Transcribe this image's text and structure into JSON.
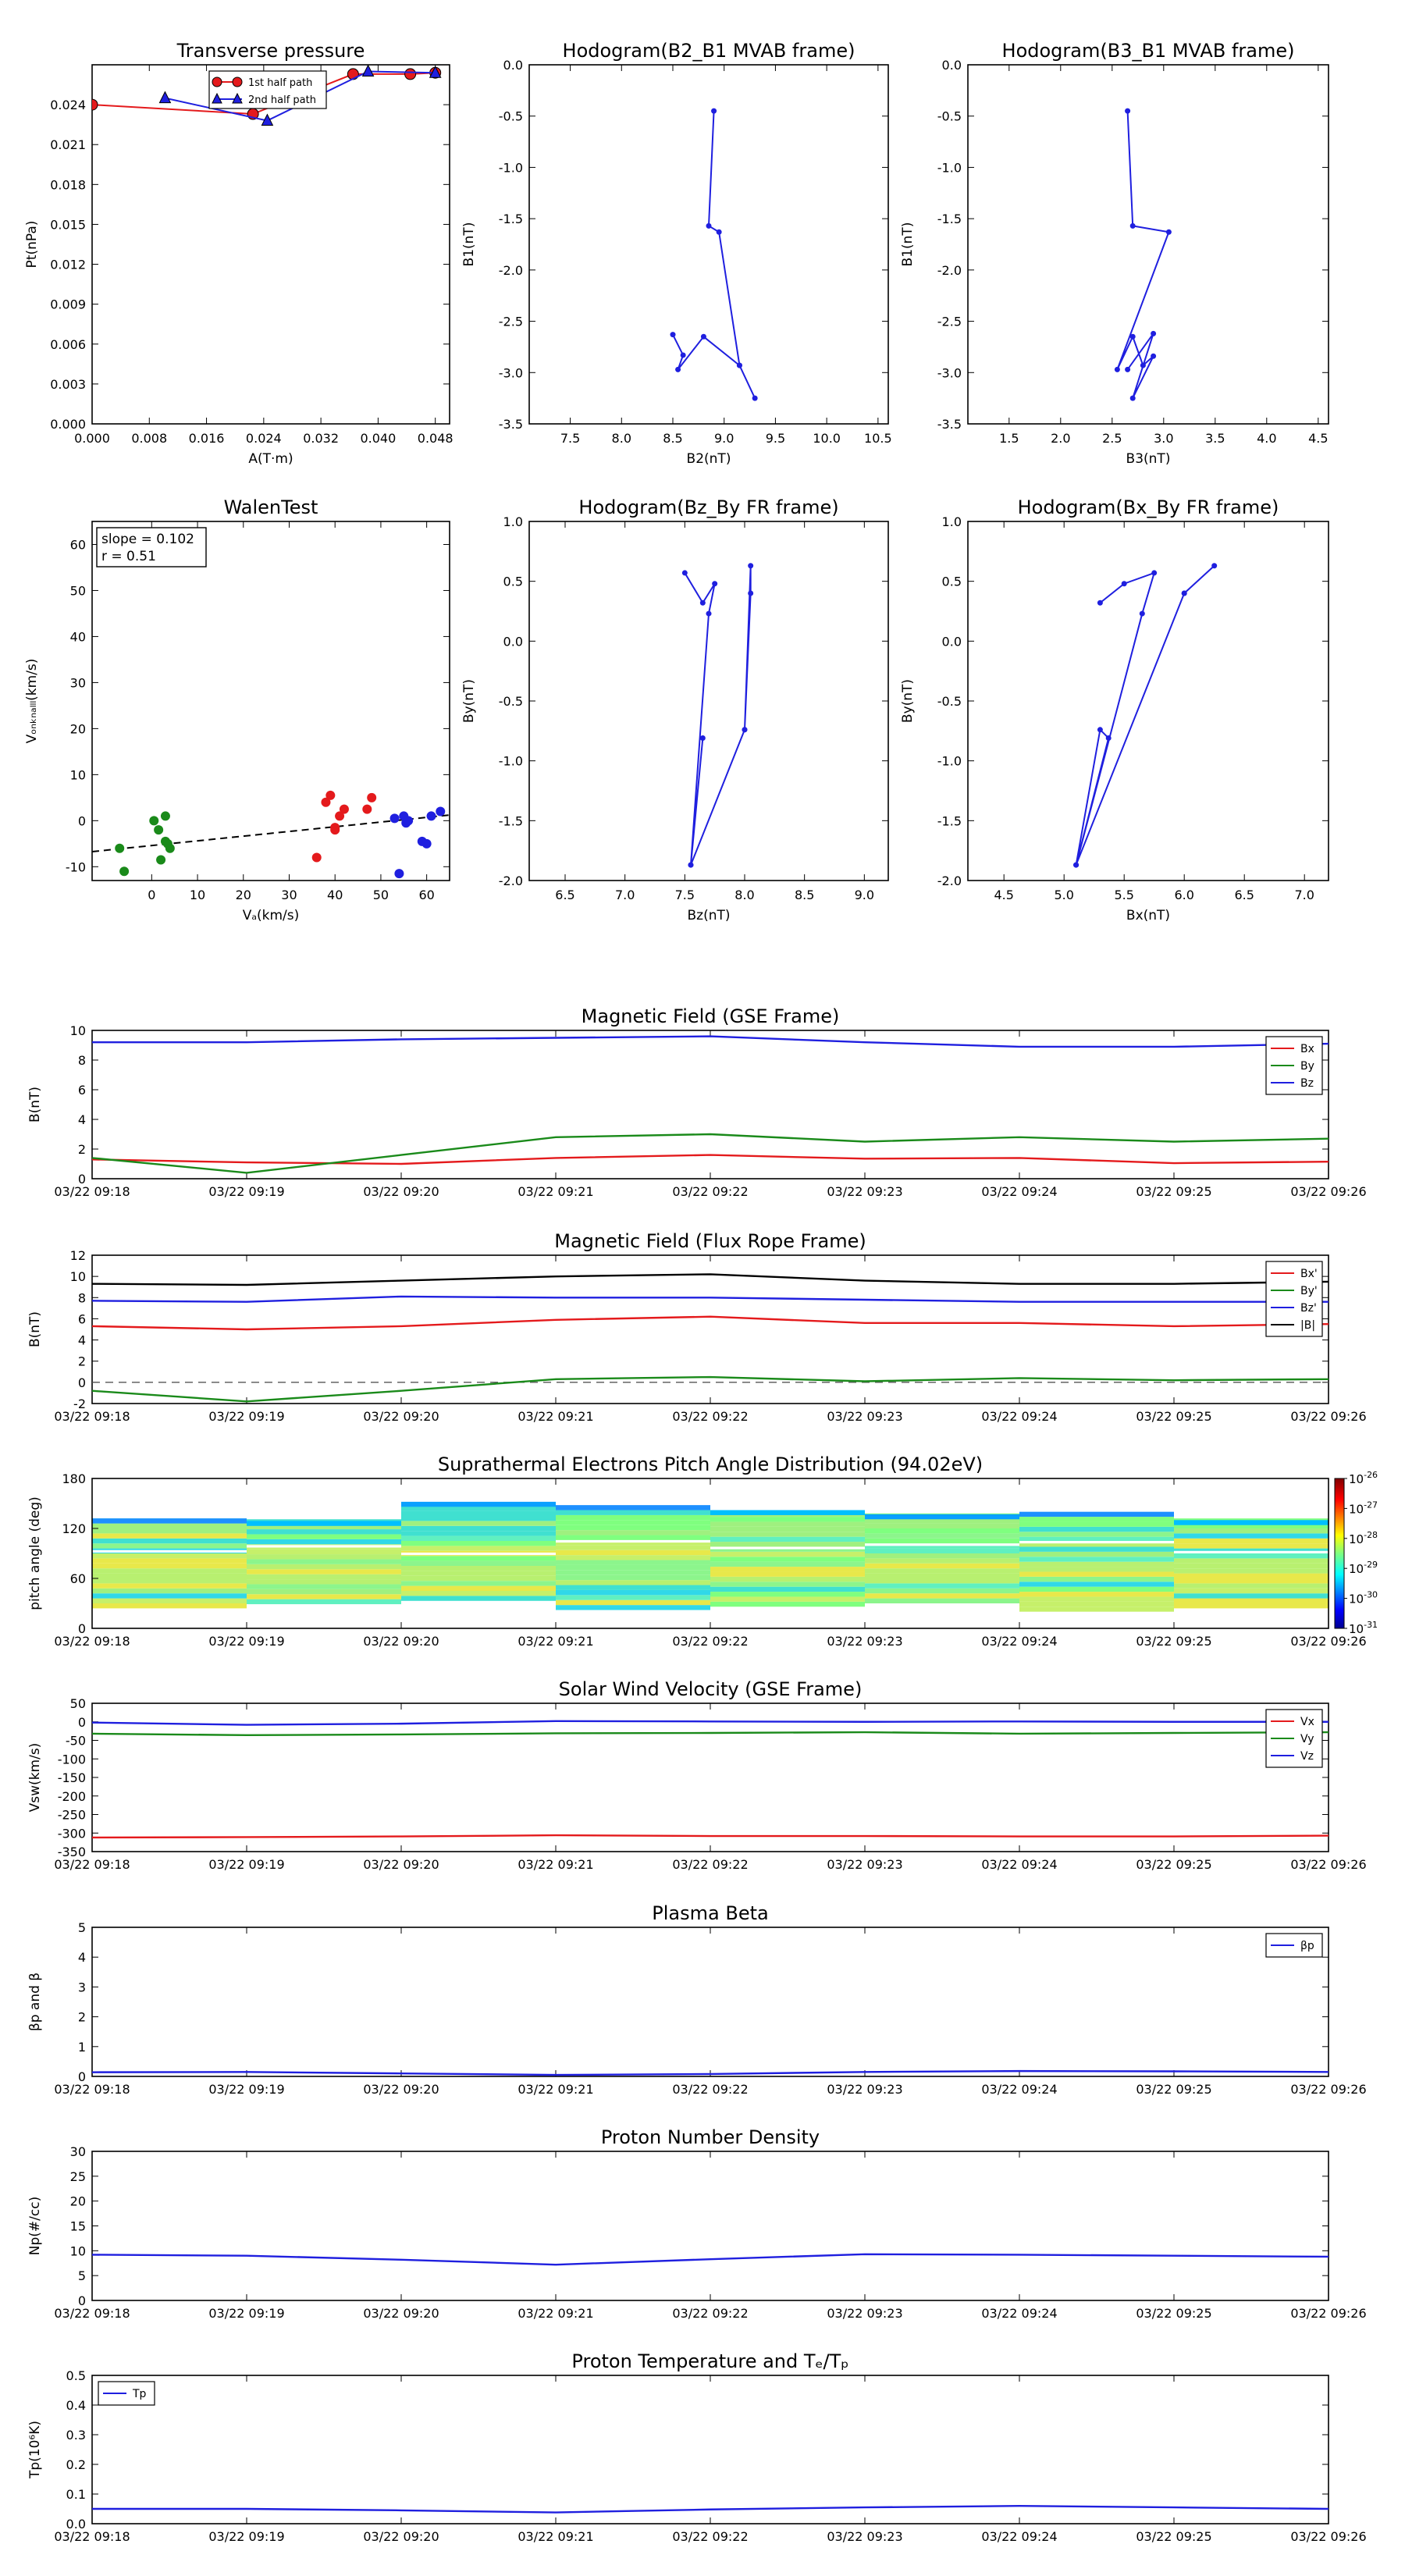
{
  "colors": {
    "red": "#e41a1c",
    "green": "#1a8a1a",
    "blue": "#1f1fdf",
    "black": "#000000"
  },
  "time_ticks": [
    "03/22 09:18",
    "03/22 09:19",
    "03/22 09:20",
    "03/22 09:21",
    "03/22 09:22",
    "03/22 09:23",
    "03/22 09:24",
    "03/22 09:25",
    "03/22 09:26"
  ],
  "pad": {
    "title": "Suprathermal Electrons Pitch Angle Distribution (94.02eV)",
    "ylabel": "pitch angle (deg)",
    "yticks": [
      "0",
      "60",
      "120",
      "180"
    ],
    "colorbar_ticks": [
      "10",
      "10",
      "10",
      "10",
      "10",
      "10"
    ],
    "colorbar_exps": [
      "-26",
      "-27",
      "-28",
      "-29",
      "-30",
      "-31"
    ]
  },
  "chart_data": [
    {
      "id": "transverse-pressure",
      "type": "line",
      "title": "Transverse pressure",
      "xlabel": "A(T·m)",
      "ylabel": "Pt(nPa)",
      "xlim": [
        0,
        0.05
      ],
      "ylim": [
        0,
        0.027
      ],
      "xticks": [
        "0.000",
        "0.008",
        "0.016",
        "0.024",
        "0.032",
        "0.040",
        "0.048"
      ],
      "yticks": [
        "0.000",
        "0.003",
        "0.006",
        "0.009",
        "0.012",
        "0.015",
        "0.018",
        "0.021",
        "0.024"
      ],
      "legend": [
        "1st half path",
        "2nd half path"
      ],
      "legend_position": "top-center",
      "series": [
        {
          "name": "1st half path",
          "color": "red",
          "marker": "circle",
          "x": [
            0.0,
            0.0225,
            0.0365,
            0.0445,
            0.048
          ],
          "y": [
            0.024,
            0.0233,
            0.0263,
            0.0263,
            0.0264
          ]
        },
        {
          "name": "2nd half path",
          "color": "blue",
          "marker": "triangle",
          "x": [
            0.0102,
            0.0245,
            0.0386,
            0.048
          ],
          "y": [
            0.0245,
            0.0228,
            0.0265,
            0.0264
          ]
        }
      ]
    },
    {
      "id": "hodogram-b2-b1",
      "type": "line",
      "title": "Hodogram(B2_B1 MVAB frame)",
      "xlabel": "B2(nT)",
      "ylabel": "B1(nT)",
      "xlim": [
        7.1,
        10.6
      ],
      "ylim": [
        -3.5,
        0.0
      ],
      "xticks": [
        "7.5",
        "8.0",
        "8.5",
        "9.0",
        "9.5",
        "10.0",
        "10.5"
      ],
      "yticks": [
        "0.0",
        "-0.5",
        "-1.0",
        "-1.5",
        "-2.0",
        "-2.5",
        "-3.0",
        "-3.5"
      ],
      "series": [
        {
          "color": "blue",
          "marker": "dot",
          "x": [
            8.5,
            8.6,
            8.55,
            8.8,
            9.15,
            9.3,
            9.15,
            8.95,
            8.85,
            8.9
          ],
          "y": [
            -2.63,
            -2.83,
            -2.97,
            -2.65,
            -2.93,
            -3.25,
            -2.93,
            -1.63,
            -1.57,
            -0.45
          ]
        }
      ]
    },
    {
      "id": "hodogram-b3-b1",
      "type": "line",
      "title": "Hodogram(B3_B1 MVAB frame)",
      "xlabel": "B3(nT)",
      "ylabel": "B1(nT)",
      "xlim": [
        1.1,
        4.6
      ],
      "ylim": [
        -3.5,
        0.0
      ],
      "xticks": [
        "1.5",
        "2.0",
        "2.5",
        "3.0",
        "3.5",
        "4.0",
        "4.5"
      ],
      "yticks": [
        "0.0",
        "-0.5",
        "-1.0",
        "-1.5",
        "-2.0",
        "-2.5",
        "-3.0",
        "-3.5"
      ],
      "series": [
        {
          "color": "blue",
          "marker": "dot",
          "x": [
            2.65,
            2.9,
            2.7,
            2.9,
            2.8,
            2.7,
            2.55,
            3.05,
            2.7,
            2.65
          ],
          "y": [
            -2.97,
            -2.62,
            -3.25,
            -2.84,
            -2.93,
            -2.65,
            -2.97,
            -1.63,
            -1.57,
            -0.45
          ]
        }
      ]
    },
    {
      "id": "walen-test",
      "type": "scatter",
      "title": "WalenTest",
      "xlabel": "Vₐ(km/s)",
      "ylabel": "Vₒₙₖₙₐₗₗₗ(km/s)",
      "xlim": [
        -13,
        65
      ],
      "ylim": [
        -13,
        65
      ],
      "xticks": [
        "0",
        "10",
        "20",
        "30",
        "40",
        "50",
        "60"
      ],
      "xtick_values": [
        0,
        10,
        20,
        30,
        40,
        50,
        60
      ],
      "yticks": [
        "-10",
        "0",
        "10",
        "20",
        "30",
        "40",
        "50",
        "60"
      ],
      "ytick_values": [
        -10,
        0,
        10,
        20,
        30,
        40,
        50,
        60
      ],
      "annotation_slope": "slope = 0.102",
      "annotation_r": "r = 0.51",
      "fit": {
        "slope": 0.102,
        "intercept": -5.4
      },
      "series": [
        {
          "color": "red",
          "x": [
            38,
            39,
            40,
            41,
            42,
            40,
            47,
            48,
            36
          ],
          "y": [
            4,
            5.5,
            -2,
            1,
            2.5,
            -1.5,
            2.5,
            5,
            -8
          ]
        },
        {
          "color": "green",
          "x": [
            -7,
            -6,
            0.5,
            1.5,
            3,
            4,
            2,
            3,
            3.5
          ],
          "y": [
            -6,
            -11,
            0,
            -2,
            1,
            -6,
            -8.5,
            -4.5,
            -5
          ]
        },
        {
          "color": "blue",
          "x": [
            53,
            55,
            55.5,
            56,
            54,
            59,
            61,
            63,
            60,
            66
          ],
          "y": [
            0.5,
            1,
            -0.5,
            0,
            -11.5,
            -4.5,
            1,
            2,
            -5,
            1.5
          ]
        }
      ]
    },
    {
      "id": "hodogram-bz-by",
      "type": "line",
      "title": "Hodogram(Bz_By FR frame)",
      "xlabel": "Bz(nT)",
      "ylabel": "By(nT)",
      "xlim": [
        6.2,
        9.2
      ],
      "ylim": [
        -2.0,
        1.0
      ],
      "xticks": [
        "6.5",
        "7.0",
        "7.5",
        "8.0",
        "8.5",
        "9.0"
      ],
      "yticks": [
        "1.0",
        "0.5",
        "0.0",
        "-0.5",
        "-1.0",
        "-1.5",
        "-2.0"
      ],
      "series": [
        {
          "color": "blue",
          "marker": "dot",
          "x": [
            7.5,
            7.65,
            7.75,
            7.7,
            7.55,
            8.0,
            8.05,
            8.05,
            8.0,
            7.55,
            7.65
          ],
          "y": [
            0.57,
            0.32,
            0.48,
            0.23,
            -1.87,
            -0.74,
            0.4,
            0.63,
            -0.74,
            -1.87,
            -0.81
          ]
        }
      ]
    },
    {
      "id": "hodogram-bx-by",
      "type": "line",
      "title": "Hodogram(Bx_By FR frame)",
      "xlabel": "Bx(nT)",
      "ylabel": "By(nT)",
      "xlim": [
        4.2,
        7.2
      ],
      "ylim": [
        -2.0,
        1.0
      ],
      "xticks": [
        "4.5",
        "5.0",
        "5.5",
        "6.0",
        "6.5",
        "7.0"
      ],
      "yticks": [
        "1.0",
        "0.5",
        "0.0",
        "-0.5",
        "-1.0",
        "-1.5",
        "-2.0"
      ],
      "series": [
        {
          "color": "blue",
          "marker": "dot",
          "x": [
            5.3,
            5.5,
            5.75,
            5.65,
            5.1,
            5.3,
            5.37,
            5.1,
            6.0,
            6.25,
            6.0
          ],
          "y": [
            0.32,
            0.48,
            0.57,
            0.23,
            -1.87,
            -0.74,
            -0.81,
            -1.87,
            0.4,
            0.63,
            0.4
          ]
        }
      ]
    },
    {
      "id": "mag-gse",
      "type": "line",
      "title": "Magnetic Field (GSE Frame)",
      "ylabel": "B(nT)",
      "ylim": [
        0,
        10
      ],
      "yticks": [
        "0",
        "2",
        "4",
        "6",
        "8",
        "10"
      ],
      "ytick_values": [
        0,
        2,
        4,
        6,
        8,
        10
      ],
      "legend_position": "top-right",
      "x": [
        0,
        1,
        2,
        3,
        4,
        5,
        6,
        7,
        8
      ],
      "series": [
        {
          "name": "Bx",
          "color": "red",
          "values": [
            1.3,
            1.1,
            1.0,
            1.4,
            1.6,
            1.35,
            1.4,
            1.05,
            1.15
          ]
        },
        {
          "name": "By",
          "color": "green",
          "values": [
            1.4,
            0.4,
            1.6,
            2.8,
            3.0,
            2.5,
            2.8,
            2.5,
            2.7
          ]
        },
        {
          "name": "Bz",
          "color": "blue",
          "values": [
            9.2,
            9.2,
            9.4,
            9.5,
            9.6,
            9.2,
            8.9,
            8.9,
            9.1
          ]
        }
      ]
    },
    {
      "id": "mag-fr",
      "type": "line",
      "title": "Magnetic Field (Flux Rope Frame)",
      "ylabel": "B(nT)",
      "ylim": [
        -2,
        12
      ],
      "yticks": [
        "-2",
        "0",
        "2",
        "4",
        "6",
        "8",
        "10",
        "12"
      ],
      "ytick_values": [
        -2,
        0,
        2,
        4,
        6,
        8,
        10,
        12
      ],
      "legend_position": "top-right",
      "zero_line": true,
      "x": [
        0,
        1,
        2,
        3,
        4,
        5,
        6,
        7,
        8
      ],
      "series": [
        {
          "name": "Bx'",
          "color": "red",
          "values": [
            5.3,
            5.0,
            5.3,
            5.9,
            6.2,
            5.6,
            5.6,
            5.3,
            5.5
          ]
        },
        {
          "name": "By'",
          "color": "green",
          "values": [
            -0.8,
            -1.8,
            -0.8,
            0.3,
            0.5,
            0.1,
            0.4,
            0.2,
            0.3
          ]
        },
        {
          "name": "Bz'",
          "color": "blue",
          "values": [
            7.7,
            7.6,
            8.1,
            8.0,
            8.0,
            7.8,
            7.6,
            7.6,
            7.6
          ]
        },
        {
          "name": "|B|",
          "color": "black",
          "values": [
            9.3,
            9.2,
            9.6,
            10.0,
            10.2,
            9.6,
            9.3,
            9.3,
            9.5
          ]
        }
      ]
    },
    {
      "id": "solar-wind",
      "type": "line",
      "title": "Solar Wind Velocity (GSE Frame)",
      "ylabel": "Vsw(km/s)",
      "ylim": [
        -350,
        50
      ],
      "yticks": [
        "50",
        "0",
        "-50",
        "-100",
        "-150",
        "-200",
        "-250",
        "-300",
        "-350"
      ],
      "ytick_values": [
        50,
        0,
        -50,
        -100,
        -150,
        -200,
        -250,
        -300,
        -350
      ],
      "legend_position": "top-right",
      "x": [
        0,
        1,
        2,
        3,
        4,
        5,
        6,
        7,
        8
      ],
      "series": [
        {
          "name": "Vx",
          "color": "red",
          "values": [
            -312,
            -311,
            -309,
            -306,
            -308,
            -308,
            -309,
            -309,
            -307
          ]
        },
        {
          "name": "Vy",
          "color": "green",
          "values": [
            -32,
            -36,
            -34,
            -31,
            -30,
            -28,
            -32,
            -30,
            -28
          ]
        },
        {
          "name": "Vz",
          "color": "blue",
          "values": [
            -2,
            -8,
            -5,
            2,
            1,
            0,
            1,
            0,
            0
          ]
        }
      ]
    },
    {
      "id": "plasma-beta",
      "type": "line",
      "title": "Plasma Beta",
      "ylabel": "βp and β",
      "ylim": [
        0,
        5
      ],
      "yticks": [
        "0",
        "1",
        "2",
        "3",
        "4",
        "5"
      ],
      "ytick_values": [
        0,
        1,
        2,
        3,
        4,
        5
      ],
      "legend_position": "top-right",
      "x": [
        0,
        1,
        2,
        3,
        4,
        5,
        6,
        7,
        8
      ],
      "series": [
        {
          "name": "βp",
          "color": "blue",
          "values": [
            0.14,
            0.15,
            0.1,
            0.05,
            0.08,
            0.15,
            0.18,
            0.17,
            0.15
          ]
        }
      ]
    },
    {
      "id": "proton-density",
      "type": "line",
      "title": "Proton Number Density",
      "ylabel": "Np(#/cc)",
      "ylim": [
        0,
        30
      ],
      "yticks": [
        "0",
        "5",
        "10",
        "15",
        "20",
        "25",
        "30"
      ],
      "ytick_values": [
        0,
        5,
        10,
        15,
        20,
        25,
        30
      ],
      "x": [
        0,
        1,
        2,
        3,
        4,
        5,
        6,
        7,
        8
      ],
      "series": [
        {
          "color": "blue",
          "values": [
            9.2,
            9.0,
            8.2,
            7.2,
            8.3,
            9.3,
            9.2,
            9.0,
            8.8
          ]
        }
      ]
    },
    {
      "id": "proton-temperature",
      "type": "line",
      "title": "Proton Temperature and Tₑ/Tₚ",
      "ylabel": "Tp(10⁶K)",
      "ylim": [
        0,
        0.5
      ],
      "yticks": [
        "0.0",
        "0.1",
        "0.2",
        "0.3",
        "0.4",
        "0.5"
      ],
      "ytick_values": [
        0,
        0.1,
        0.2,
        0.3,
        0.4,
        0.5
      ],
      "legend_position": "top-left",
      "x": [
        0,
        1,
        2,
        3,
        4,
        5,
        6,
        7,
        8
      ],
      "series": [
        {
          "name": "Tp",
          "color": "blue",
          "values": [
            0.05,
            0.05,
            0.045,
            0.038,
            0.048,
            0.055,
            0.06,
            0.055,
            0.05
          ]
        }
      ]
    }
  ]
}
